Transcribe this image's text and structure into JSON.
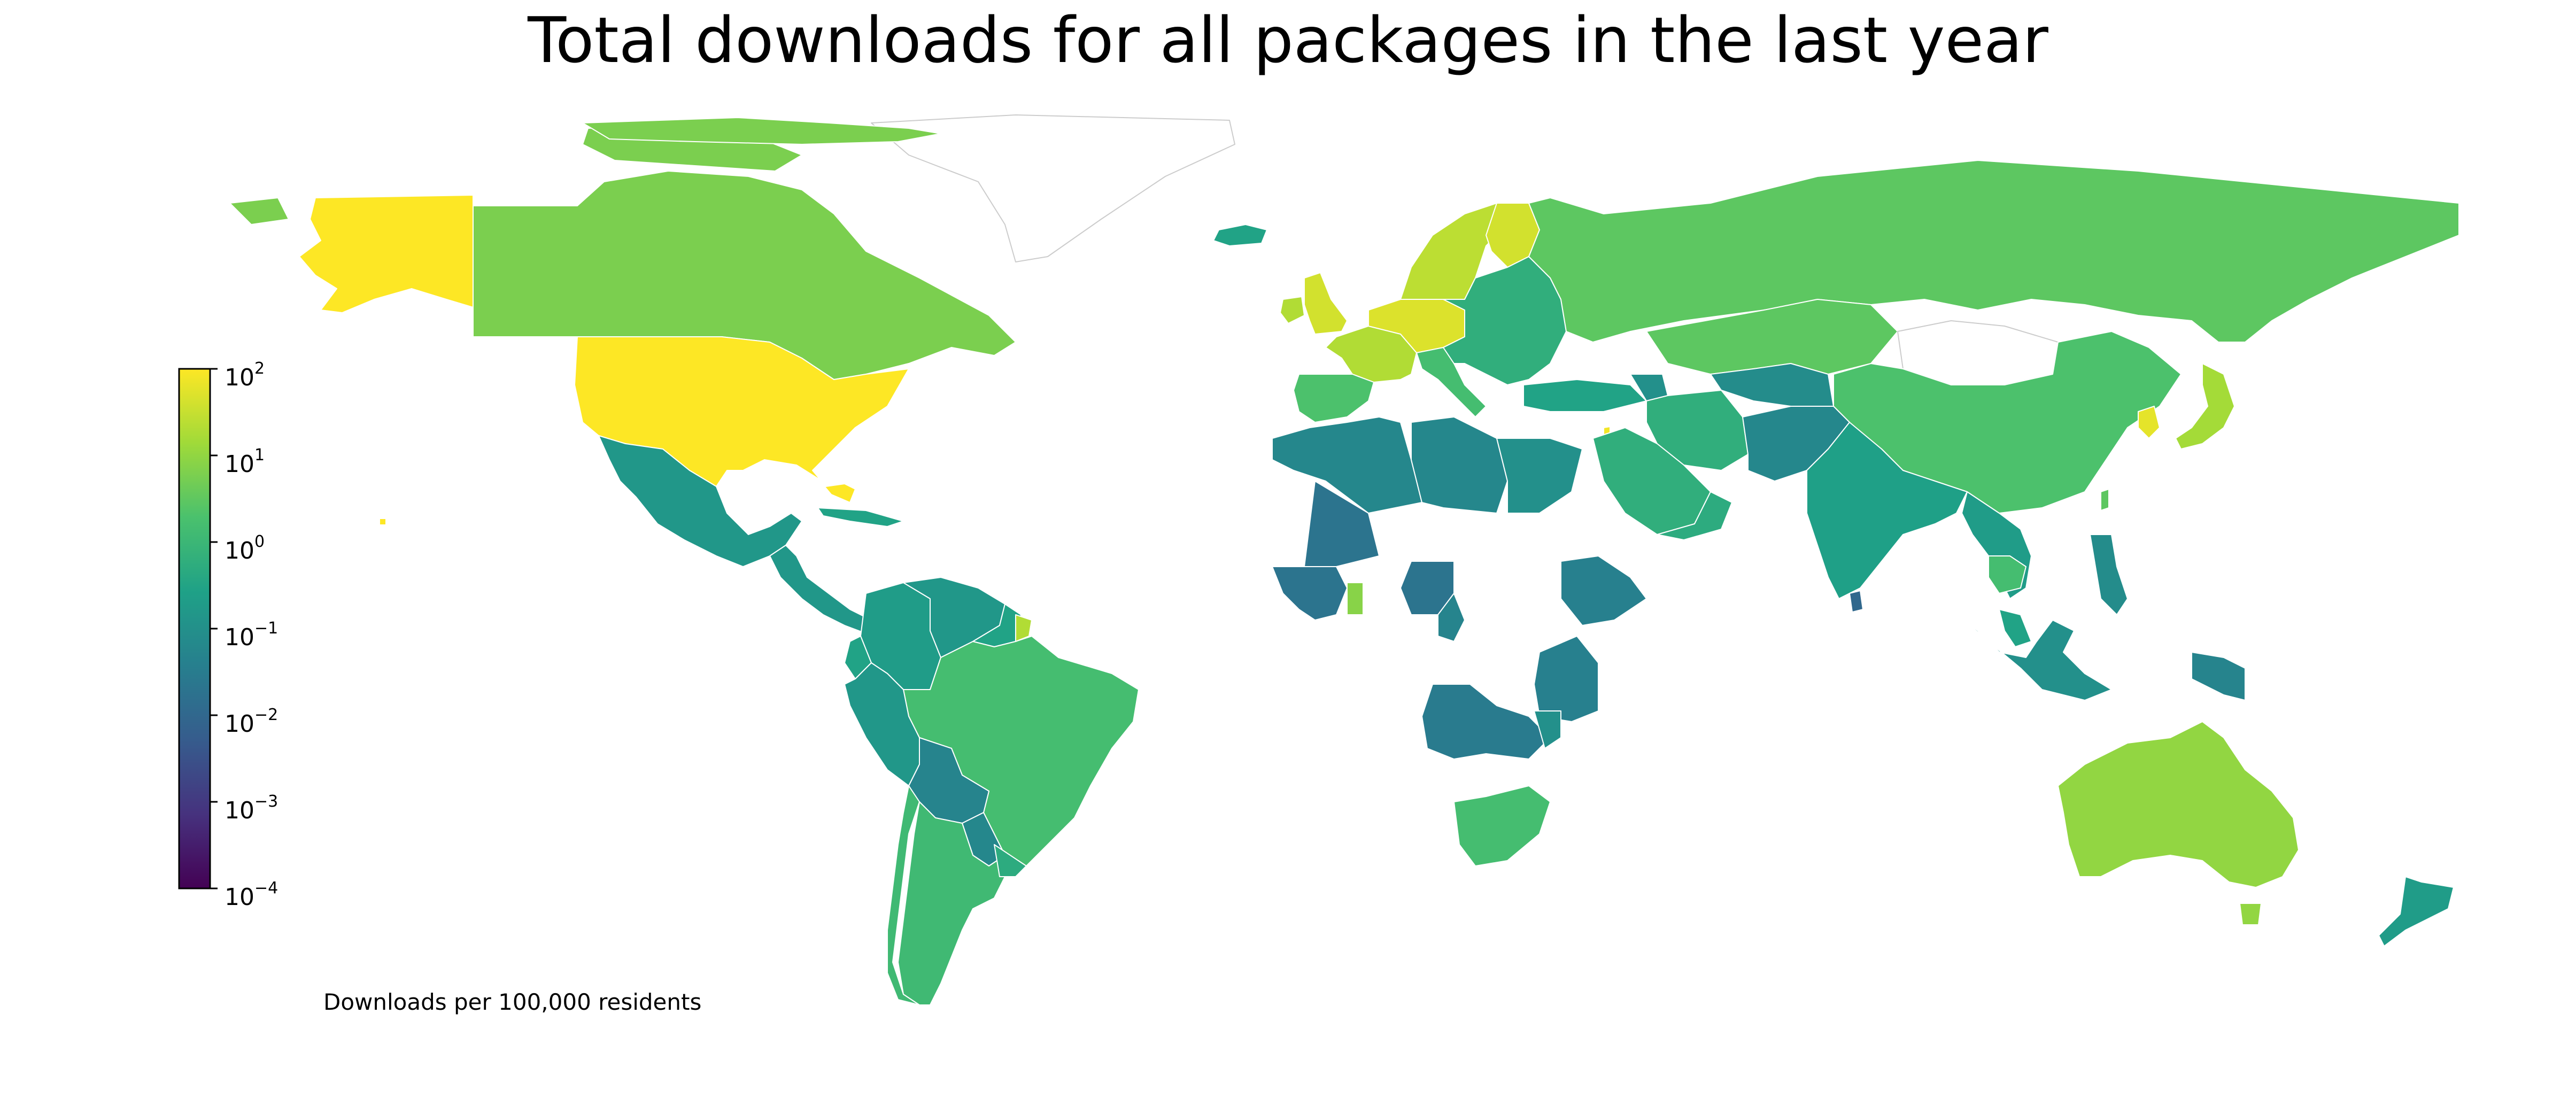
{
  "title": "Total downloads for all packages in the last year",
  "caption": "Downloads per 100,000 residents",
  "colorbar": {
    "scale": "log",
    "colormap": "viridis",
    "range": [
      0.0001,
      100
    ],
    "tick_base": "10",
    "ticks": [
      {
        "exp": "2",
        "value": 100
      },
      {
        "exp": "1",
        "value": 10
      },
      {
        "exp": "0",
        "value": 1
      },
      {
        "exp": "−1",
        "value": 0.1
      },
      {
        "exp": "−2",
        "value": 0.01
      },
      {
        "exp": "−3",
        "value": 0.001
      },
      {
        "exp": "−4",
        "value": 0.0001
      }
    ],
    "stops": [
      "#440154",
      "#46327e",
      "#365c8d",
      "#277f8e",
      "#1fa187",
      "#4ac16d",
      "#a0da39",
      "#fde725"
    ]
  },
  "chart_data": {
    "type": "choropleth",
    "title": "Total downloads for all packages in the last year",
    "legend_label": "Downloads per 100,000 residents",
    "scale": "log",
    "range": [
      0.0001,
      100
    ],
    "regions": [
      {
        "id": "alaska",
        "value": 150
      },
      {
        "id": "canada",
        "value": 6
      },
      {
        "id": "greenland",
        "value": null
      },
      {
        "id": "usa",
        "value": 150
      },
      {
        "id": "mexico",
        "value": 0.15
      },
      {
        "id": "central-america",
        "value": 0.15
      },
      {
        "id": "cuba",
        "value": 0.3
      },
      {
        "id": "colombia",
        "value": 0.2
      },
      {
        "id": "venezuela",
        "value": 0.15
      },
      {
        "id": "guianas",
        "value": 0.3
      },
      {
        "id": "french-guiana",
        "value": 20
      },
      {
        "id": "brazil",
        "value": 1.5
      },
      {
        "id": "peru",
        "value": 0.15
      },
      {
        "id": "ecuador",
        "value": 0.3
      },
      {
        "id": "bolivia",
        "value": 0.05
      },
      {
        "id": "paraguay",
        "value": 0.06
      },
      {
        "id": "argentina",
        "value": 1.2
      },
      {
        "id": "chile",
        "value": 1.2
      },
      {
        "id": "uruguay",
        "value": 0.5
      },
      {
        "id": "iceland",
        "value": 0.3
      },
      {
        "id": "uk",
        "value": 40
      },
      {
        "id": "ireland",
        "value": 20
      },
      {
        "id": "france",
        "value": 20
      },
      {
        "id": "iberia",
        "value": 2
      },
      {
        "id": "germany",
        "value": 50
      },
      {
        "id": "scandinavia",
        "value": 25
      },
      {
        "id": "finland",
        "value": 40
      },
      {
        "id": "italy",
        "value": 1.5
      },
      {
        "id": "eastern-europe",
        "value": 0.6
      },
      {
        "id": "russia",
        "value": 3
      },
      {
        "id": "kazakhstan",
        "value": 3
      },
      {
        "id": "mongolia",
        "value": null
      },
      {
        "id": "china",
        "value": 2
      },
      {
        "id": "japan",
        "value": 15
      },
      {
        "id": "korea",
        "value": 60
      },
      {
        "id": "turkey",
        "value": 0.3
      },
      {
        "id": "caucasus",
        "value": 0.1
      },
      {
        "id": "central-asia",
        "value": 0.08
      },
      {
        "id": "iran",
        "value": 0.6
      },
      {
        "id": "afghanistan-pakistan",
        "value": 0.06
      },
      {
        "id": "israel",
        "value": 80
      },
      {
        "id": "saudi-arabia",
        "value": 0.6
      },
      {
        "id": "oman",
        "value": 0.5
      },
      {
        "id": "india",
        "value": 0.25
      },
      {
        "id": "sri-lanka",
        "value": 0.01
      },
      {
        "id": "indochina",
        "value": 0.2
      },
      {
        "id": "thailand",
        "value": 1.5
      },
      {
        "id": "philippines",
        "value": 0.08
      },
      {
        "id": "taiwan",
        "value": 3
      },
      {
        "id": "indonesia",
        "value": 0.1
      },
      {
        "id": "malaysia",
        "value": 0.3
      },
      {
        "id": "png",
        "value": 0.05
      },
      {
        "id": "australia",
        "value": 10
      },
      {
        "id": "tasmania",
        "value": 10
      },
      {
        "id": "new-zealand",
        "value": 0.2
      },
      {
        "id": "maghreb",
        "value": 0.06
      },
      {
        "id": "libya",
        "value": 0.06
      },
      {
        "id": "egypt",
        "value": 0.1
      },
      {
        "id": "mali",
        "value": 0.02
      },
      {
        "id": "west-africa",
        "value": 0.02
      },
      {
        "id": "ghana",
        "value": 8
      },
      {
        "id": "nigeria",
        "value": 0.02
      },
      {
        "id": "cameroon",
        "value": 0.05
      },
      {
        "id": "ethiopia",
        "value": 0.04
      },
      {
        "id": "kenya-tanzania",
        "value": 0.04
      },
      {
        "id": "angola-zambia",
        "value": 0.03
      },
      {
        "id": "mozambique",
        "value": 0.1
      },
      {
        "id": "south-africa",
        "value": 1.5
      },
      {
        "id": "hawaii",
        "value": 150
      }
    ]
  }
}
